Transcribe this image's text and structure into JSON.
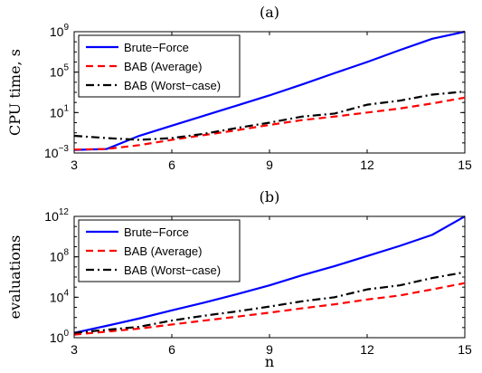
{
  "chart_data": [
    {
      "type": "line",
      "title": "(a)",
      "xlabel": "",
      "ylabel": "CPU time, s",
      "xscale": "linear",
      "yscale": "log",
      "xlim": [
        3,
        15
      ],
      "ylim": [
        0.001,
        1000000000
      ],
      "xticks": [
        "3",
        "6",
        "9",
        "12",
        "15"
      ],
      "yticks": [
        {
          "value": 0.001,
          "base": "10",
          "exp": "−3"
        },
        {
          "value": 10,
          "base": "10",
          "exp": "1"
        },
        {
          "value": 100000,
          "base": "10",
          "exp": "5"
        },
        {
          "value": 1000000000,
          "base": "10",
          "exp": "9"
        }
      ],
      "grid": false,
      "legend_position": "top-left",
      "x": [
        3,
        4,
        5,
        6,
        7,
        8,
        9,
        10,
        11,
        12,
        13,
        14,
        15
      ],
      "series": [
        {
          "name": "Brute−Force",
          "color": "#0000ff",
          "style": "solid",
          "values": [
            0.002,
            0.0025,
            0.05,
            0.5,
            5,
            50,
            500,
            6000,
            80000,
            1000000,
            15000000,
            200000000,
            1000000000
          ]
        },
        {
          "name": "BAB (Average)",
          "color": "#ff0000",
          "style": "dashed",
          "values": [
            0.0022,
            0.0025,
            0.006,
            0.02,
            0.06,
            0.18,
            0.6,
            1.8,
            4,
            10,
            25,
            80,
            300
          ]
        },
        {
          "name": "BAB (Worst−case)",
          "color": "#000000",
          "style": "dashdot",
          "values": [
            0.05,
            0.03,
            0.02,
            0.03,
            0.08,
            0.3,
            1,
            4,
            8,
            60,
            150,
            600,
            1200
          ]
        }
      ]
    },
    {
      "type": "line",
      "title": "(b)",
      "xlabel": "n",
      "ylabel": "evaluations",
      "xscale": "linear",
      "yscale": "log",
      "xlim": [
        3,
        15
      ],
      "ylim": [
        1,
        1000000000000
      ],
      "xticks": [
        "3",
        "6",
        "9",
        "12",
        "15"
      ],
      "yticks": [
        {
          "value": 1,
          "base": "10",
          "exp": "0"
        },
        {
          "value": 10000,
          "base": "10",
          "exp": "4"
        },
        {
          "value": 100000000,
          "base": "10",
          "exp": "8"
        },
        {
          "value": 1000000000000,
          "base": "10",
          "exp": "12"
        }
      ],
      "grid": false,
      "legend_position": "top-left",
      "x": [
        3,
        4,
        5,
        6,
        7,
        8,
        9,
        10,
        11,
        12,
        13,
        14,
        15
      ],
      "series": [
        {
          "name": "Brute−Force",
          "color": "#0000ff",
          "style": "solid",
          "values": [
            3,
            15,
            80,
            500,
            3000,
            20000,
            150000,
            1500000,
            12000000,
            120000000,
            1200000000,
            15000000000,
            1000000000000
          ]
        },
        {
          "name": "BAB (Average)",
          "color": "#ff0000",
          "style": "dashed",
          "values": [
            2,
            4,
            8,
            20,
            50,
            120,
            300,
            800,
            2000,
            6000,
            15000,
            60000,
            250000
          ]
        },
        {
          "name": "BAB (Worst−case)",
          "color": "#000000",
          "style": "dashdot",
          "values": [
            3,
            6,
            12,
            50,
            150,
            400,
            1200,
            4000,
            10000,
            60000,
            150000,
            800000,
            3000000
          ]
        }
      ]
    }
  ]
}
